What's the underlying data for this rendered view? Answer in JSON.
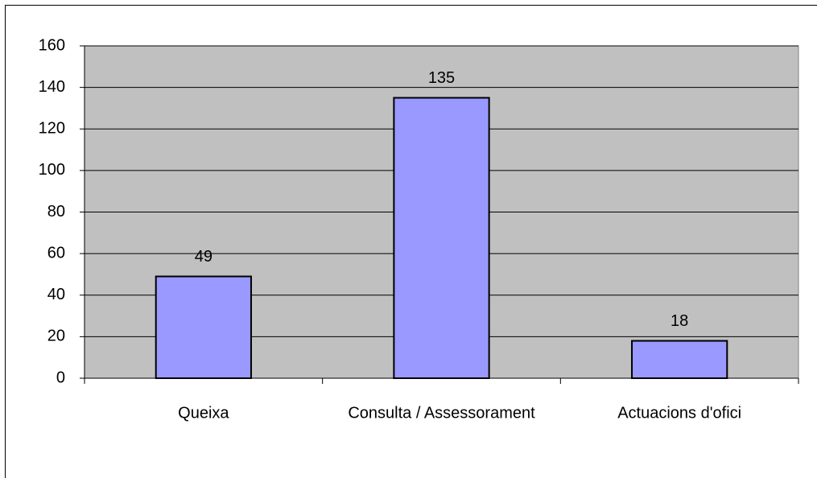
{
  "chart_data": {
    "type": "bar",
    "categories": [
      "Queixa",
      "Consulta / Assessorament",
      "Actuacions d'ofici"
    ],
    "values": [
      49,
      135,
      18
    ],
    "color": "#9999ff",
    "plot_background": "#c0c0c0",
    "ylim": [
      0,
      160
    ],
    "yticks": [
      0,
      20,
      40,
      60,
      80,
      100,
      120,
      140,
      160
    ],
    "grid": true,
    "data_labels": true
  }
}
